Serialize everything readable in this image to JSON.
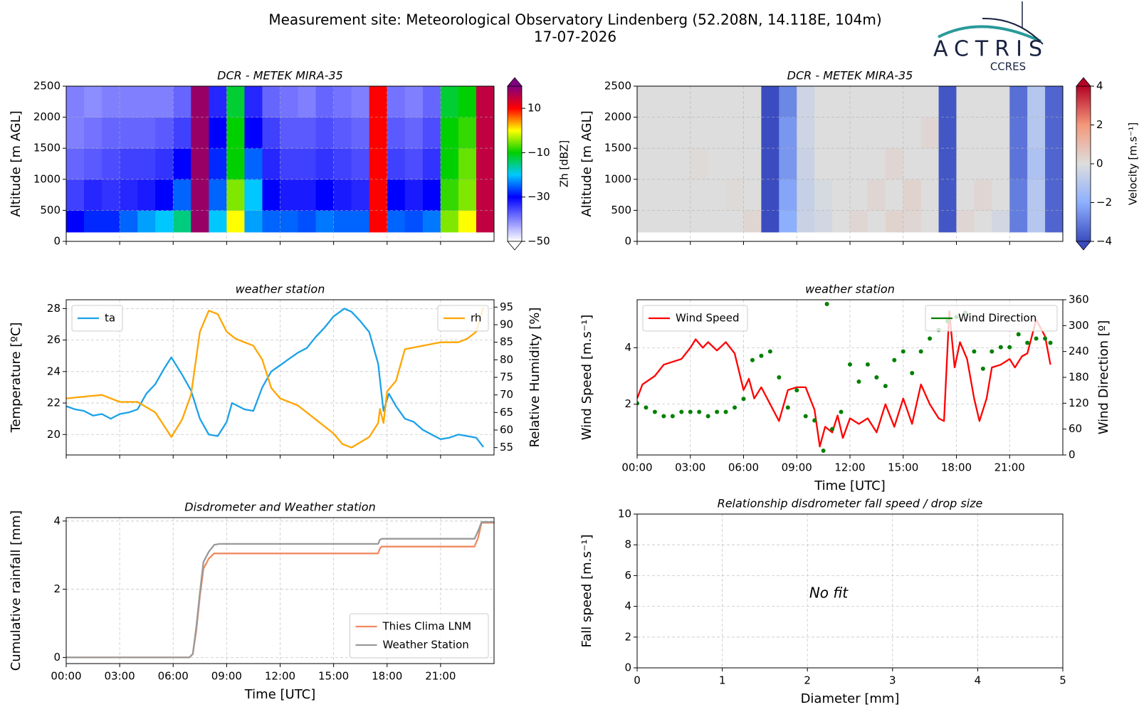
{
  "header": {
    "title": "Measurement site: Meteorological Observatory Lindenberg (52.208N, 14.118E, 104m)",
    "date": "17-07-2026",
    "logo": "ACTRIS",
    "logo_sub": "CCRES"
  },
  "chart_data": [
    {
      "type": "heatmap",
      "title": "DCR - METEK MIRA-35",
      "ylabel": "Altitude [m AGL]",
      "colorbar_label": "Zh [dBZ]",
      "x": [
        0,
        1,
        2,
        3,
        4,
        5,
        6,
        7,
        8,
        9,
        10,
        11,
        12,
        13,
        14,
        15,
        16,
        17,
        18,
        19,
        20,
        21,
        22,
        23,
        24
      ],
      "y": [
        150,
        500,
        1000,
        1500,
        2000,
        2500
      ],
      "z": [
        [
          -30,
          -28,
          -28,
          -25,
          -22,
          -20,
          -15,
          18,
          -20,
          0,
          -22,
          -25,
          -25,
          -26,
          -24,
          -25,
          -25,
          10,
          -25,
          -26,
          -24,
          -5,
          0,
          15
        ],
        [
          -35,
          -33,
          -34,
          -33,
          -32,
          -30,
          -25,
          18,
          -25,
          -5,
          -20,
          -30,
          -32,
          -32,
          -30,
          -32,
          -33,
          10,
          -30,
          -32,
          -30,
          -8,
          -5,
          15
        ],
        [
          -38,
          -37,
          -36,
          -35,
          -35,
          -34,
          -30,
          18,
          -28,
          -10,
          -25,
          -33,
          -35,
          -35,
          -34,
          -35,
          -36,
          10,
          -35,
          -36,
          -34,
          -10,
          -6,
          15
        ],
        [
          -40,
          -39,
          -38,
          -38,
          -38,
          -37,
          -35,
          18,
          -30,
          -10,
          -30,
          -35,
          -37,
          -37,
          -36,
          -37,
          -38,
          10,
          -37,
          -38,
          -36,
          -10,
          -8,
          15
        ],
        [
          -40,
          -41,
          -40,
          -40,
          -40,
          -40,
          -38,
          18,
          -33,
          -12,
          -33,
          -38,
          -39,
          -40,
          -38,
          -39,
          -40,
          10,
          -39,
          -40,
          -38,
          -12,
          -10,
          15
        ]
      ],
      "colors": [
        "#ffffff",
        "#8080ff",
        "#0000ff",
        "#00c8ff",
        "#00d000",
        "#ffff00",
        "#ff0000",
        "#800080"
      ],
      "clim": [
        -50,
        20
      ],
      "cbticks": [
        {
          "value": -50,
          "label": "−50"
        },
        {
          "value": -30,
          "label": "−30"
        },
        {
          "value": -10,
          "label": "−10"
        },
        10
      ],
      "xlim": [
        0,
        24
      ],
      "xticks": [
        0,
        3,
        6,
        9,
        12,
        15,
        18,
        21
      ],
      "xtick_labels": false,
      "ylim": [
        0,
        2500
      ],
      "yticks": [
        0,
        500,
        1000,
        1500,
        2000,
        2500
      ],
      "grid": true
    },
    {
      "type": "heatmap",
      "title": "DCR - METEK MIRA-35",
      "ylabel": "Altitude [m AGL]",
      "colorbar_label": "Velocity [m.s⁻¹]",
      "x": [
        0,
        1,
        2,
        3,
        4,
        5,
        6,
        7,
        8,
        9,
        10,
        11,
        12,
        13,
        14,
        15,
        16,
        17,
        18,
        19,
        20,
        21,
        22,
        23,
        24
      ],
      "y": [
        150,
        500,
        1000,
        1500,
        2000,
        2500
      ],
      "z": [
        [
          0,
          0,
          0,
          0,
          0,
          0,
          0.2,
          -4,
          -2,
          -0.5,
          -0.3,
          0,
          0.2,
          0,
          0.3,
          0.2,
          0,
          -3.8,
          0.2,
          0,
          -0.3,
          -3,
          -1,
          -3.5
        ],
        [
          0,
          0,
          0,
          0,
          0,
          0.1,
          0,
          -4,
          -2.2,
          -0.6,
          -0.2,
          0,
          0,
          0.2,
          0,
          0.3,
          0,
          -3.8,
          0,
          0.2,
          0,
          -3,
          -1,
          -3.5
        ],
        [
          0,
          0,
          0,
          0.1,
          0,
          0,
          0,
          -4,
          -2.5,
          -0.5,
          0,
          0,
          0,
          0,
          0.2,
          0,
          0,
          -3.8,
          0,
          0,
          0,
          -3.2,
          -1.2,
          -3.5
        ],
        [
          0,
          0,
          0,
          0,
          0,
          0,
          0,
          -4,
          -2.5,
          -0.4,
          0,
          0,
          0,
          0,
          0,
          0,
          0.2,
          -3.8,
          0,
          0,
          0,
          -3.2,
          -1,
          -3.5
        ],
        [
          0,
          0,
          0,
          0,
          0,
          0,
          0,
          -4,
          -2.8,
          -0.4,
          0,
          0,
          0,
          0,
          0,
          0,
          0,
          -3.8,
          0,
          0,
          0,
          -3.3,
          -1,
          -3.5
        ]
      ],
      "colors": [
        "#3b4cc0",
        "#8db0fe",
        "#dddddd",
        "#f4987a",
        "#b40426"
      ],
      "clim": [
        -4,
        4
      ],
      "cbticks": [
        {
          "value": -4,
          "label": "−4"
        },
        {
          "value": -2,
          "label": "−2"
        },
        0,
        2,
        4
      ],
      "xlim": [
        0,
        24
      ],
      "xticks": [
        0,
        3,
        6,
        9,
        12,
        15,
        18,
        21
      ],
      "xtick_labels": false,
      "ylim": [
        0,
        2500
      ],
      "yticks": [
        0,
        500,
        1000,
        1500,
        2000,
        2500
      ],
      "grid": true
    },
    {
      "type": "line",
      "title": "weather station",
      "ylabel": "Temperature [ºC]",
      "y2label": "Relative Humidity [%]",
      "xlim": [
        0,
        24
      ],
      "xticks": [
        0,
        3,
        6,
        9,
        12,
        15,
        18,
        21
      ],
      "xtick_labels": false,
      "ylim": [
        18.7,
        28.56
      ],
      "yticks": [
        20,
        22,
        24,
        26,
        28
      ],
      "y2lim": [
        52.9,
        97.1
      ],
      "y2ticks": [
        55,
        60,
        65,
        70,
        75,
        80,
        85,
        90,
        95
      ],
      "grid": true,
      "series": [
        {
          "name": "ta",
          "color": "#1ba1e8",
          "mode": "line",
          "legend": "upper left",
          "x": [
            0,
            0.5,
            1,
            1.5,
            2,
            2.5,
            3,
            3.5,
            4,
            4.5,
            5,
            5.5,
            5.9,
            6.5,
            7,
            7.5,
            8,
            8.5,
            9,
            9.3,
            10,
            10.5,
            11,
            11.5,
            12,
            12.5,
            13,
            13.5,
            14,
            14.5,
            15,
            15.6,
            16,
            16.5,
            17,
            17.5,
            17.8,
            18.1,
            18.5,
            19,
            19.5,
            20,
            20.5,
            21,
            21.5,
            22,
            22.5,
            23,
            23.4
          ],
          "values": [
            21.8,
            21.6,
            21.5,
            21.2,
            21.3,
            21.0,
            21.3,
            21.4,
            21.6,
            22.6,
            23.2,
            24.2,
            24.9,
            23.8,
            22.8,
            21.0,
            20.0,
            19.9,
            20.8,
            22.0,
            21.6,
            21.5,
            23.0,
            24.0,
            24.4,
            24.8,
            25.2,
            25.5,
            26.2,
            26.8,
            27.5,
            28.0,
            27.8,
            27.2,
            26.5,
            24.5,
            21.5,
            22.6,
            21.8,
            21.0,
            20.8,
            20.3,
            20.0,
            19.7,
            19.8,
            20.0,
            19.9,
            19.8,
            19.2
          ]
        },
        {
          "name": "rh",
          "color": "#ffa500",
          "mode": "line",
          "axis": "y2",
          "legend": "upper right",
          "x": [
            0,
            1,
            2,
            2.5,
            3,
            4,
            5,
            5.9,
            6.5,
            7,
            7.5,
            8,
            8.5,
            9,
            9.5,
            10,
            10.5,
            11,
            11.5,
            12,
            13,
            14,
            15,
            15.5,
            16,
            17,
            17.5,
            17.6,
            17.8,
            18,
            18.5,
            19,
            20,
            21,
            22,
            22.5,
            23,
            23.4
          ],
          "values": [
            69,
            69.5,
            70,
            69,
            68,
            68,
            65,
            58,
            63,
            70,
            88,
            94,
            93,
            88,
            86,
            85,
            84,
            80,
            72,
            69,
            67,
            63,
            59,
            56,
            55,
            58,
            62,
            66,
            62,
            71,
            74,
            83,
            84,
            85,
            85,
            86,
            88,
            95
          ]
        }
      ]
    },
    {
      "type": "line",
      "title": "weather station",
      "ylabel": "Wind Speed [m.s⁻¹]",
      "y2label": "Wind Direction [º]",
      "xlabel": "Time [UTC]",
      "xlim": [
        0,
        24
      ],
      "xticks": [
        {
          "value": 0,
          "label": "00:00"
        },
        {
          "value": 3,
          "label": "03:00"
        },
        {
          "value": 6,
          "label": "06:00"
        },
        {
          "value": 9,
          "label": "09:00"
        },
        {
          "value": 12,
          "label": "12:00"
        },
        {
          "value": 15,
          "label": "15:00"
        },
        {
          "value": 18,
          "label": "18:00"
        },
        {
          "value": 21,
          "label": "21:00"
        }
      ],
      "ylim": [
        0.2,
        5.7
      ],
      "yticks": [
        2,
        4
      ],
      "y2lim": [
        0,
        360
      ],
      "y2ticks": [
        0,
        60,
        120,
        180,
        240,
        300,
        360
      ],
      "grid": true,
      "series": [
        {
          "name": "Wind Speed",
          "color": "#ff0000",
          "mode": "line",
          "legend": "upper left",
          "x": [
            0,
            0.3,
            1,
            1.5,
            2,
            2.5,
            3,
            3.3,
            3.7,
            4,
            4.5,
            5,
            5.5,
            6,
            6.3,
            6.6,
            7,
            7.5,
            8,
            8.5,
            9,
            9.5,
            10,
            10.3,
            10.6,
            11,
            11.3,
            11.6,
            12,
            12.5,
            13,
            13.5,
            14,
            14.5,
            15,
            15.5,
            16,
            16.5,
            17,
            17.3,
            17.6,
            17.9,
            18.2,
            18.6,
            19,
            19.3,
            19.7,
            20,
            20.5,
            21,
            21.3,
            21.7,
            22,
            22.5,
            23,
            23.3
          ],
          "values": [
            2.2,
            2.7,
            3.0,
            3.4,
            3.5,
            3.6,
            4.0,
            4.3,
            4.0,
            4.2,
            3.9,
            4.2,
            3.8,
            2.5,
            2.9,
            2.2,
            2.6,
            2.0,
            1.4,
            2.5,
            2.6,
            2.6,
            1.8,
            0.5,
            1.2,
            1.0,
            1.6,
            0.8,
            1.5,
            1.3,
            1.5,
            1.0,
            2.0,
            1.2,
            2.2,
            1.3,
            2.7,
            2.0,
            1.5,
            1.4,
            5.3,
            3.3,
            4.2,
            3.6,
            2.2,
            1.4,
            2.2,
            3.3,
            3.4,
            3.6,
            3.3,
            3.7,
            3.8,
            5.0,
            4.4,
            3.4
          ]
        },
        {
          "name": "Wind Direction",
          "color": "#008000",
          "mode": "markers",
          "axis": "y2",
          "legend": "upper right",
          "x": [
            0,
            0.5,
            1,
            1.5,
            2,
            2.5,
            3,
            3.5,
            4,
            4.5,
            5,
            5.5,
            6,
            6.5,
            7,
            7.5,
            8,
            8.5,
            9,
            9.5,
            10,
            10.5,
            10.7,
            11,
            11.5,
            12,
            12.5,
            13,
            13.5,
            14,
            14.5,
            15,
            15.5,
            16,
            16.5,
            17,
            17.5,
            18,
            18.5,
            19,
            19.5,
            20,
            20.5,
            21,
            21.5,
            22,
            22.5,
            23,
            23.3
          ],
          "values": [
            120,
            110,
            100,
            90,
            90,
            100,
            100,
            100,
            90,
            100,
            100,
            110,
            130,
            220,
            230,
            240,
            180,
            110,
            150,
            90,
            80,
            10,
            350,
            60,
            100,
            210,
            170,
            210,
            180,
            160,
            220,
            240,
            190,
            240,
            270,
            290,
            310,
            320,
            330,
            240,
            200,
            240,
            250,
            250,
            280,
            260,
            270,
            270,
            260
          ]
        }
      ]
    },
    {
      "type": "line",
      "title": "Disdrometer and Weather station",
      "ylabel": "Cumulative rainfall [mm]",
      "xlabel": "Time [UTC]",
      "xlim": [
        0,
        24
      ],
      "xticks": [
        {
          "value": 0,
          "label": "00:00"
        },
        {
          "value": 3,
          "label": "03:00"
        },
        {
          "value": 6,
          "label": "06:00"
        },
        {
          "value": 9,
          "label": "09:00"
        },
        {
          "value": 12,
          "label": "12:00"
        },
        {
          "value": 15,
          "label": "15:00"
        },
        {
          "value": 18,
          "label": "18:00"
        },
        {
          "value": 21,
          "label": "21:00"
        }
      ],
      "ylim": [
        -0.18,
        4.1
      ],
      "yticks": [
        0,
        2,
        4
      ],
      "grid": true,
      "series": [
        {
          "name": "Thies Clima LNM",
          "color": "#ef8a62",
          "mode": "line",
          "legend": "lower right",
          "x": [
            0,
            6.9,
            7.1,
            7.3,
            7.5,
            7.7,
            8.0,
            8.3,
            9,
            17.5,
            17.6,
            17.7,
            22.9,
            23.1,
            23.3,
            24
          ],
          "values": [
            0,
            0,
            0.1,
            0.8,
            1.8,
            2.6,
            2.9,
            3.05,
            3.05,
            3.05,
            3.2,
            3.25,
            3.25,
            3.5,
            3.95,
            3.95
          ]
        },
        {
          "name": "Weather Station",
          "color": "#999999",
          "mode": "line",
          "legend": "lower right",
          "x": [
            0,
            6.9,
            7.1,
            7.3,
            7.5,
            7.7,
            8.0,
            8.3,
            8.6,
            17.5,
            17.6,
            17.7,
            22.9,
            23.1,
            23.3,
            24
          ],
          "values": [
            0,
            0,
            0.1,
            0.9,
            1.9,
            2.8,
            3.1,
            3.3,
            3.33,
            3.33,
            3.45,
            3.48,
            3.48,
            3.7,
            3.97,
            3.97
          ]
        }
      ]
    },
    {
      "type": "scatter",
      "title": "Relationship disdrometer fall speed / drop size",
      "ylabel": "Fall speed [m.s⁻¹]",
      "xlabel": "Diameter [mm]",
      "annotation": "No fit",
      "xlim": [
        0,
        5
      ],
      "xticks": [
        0,
        1,
        2,
        3,
        4,
        5
      ],
      "ylim": [
        0,
        10
      ],
      "yticks": [
        0,
        2,
        4,
        6,
        8,
        10
      ],
      "grid": true,
      "series": []
    }
  ]
}
